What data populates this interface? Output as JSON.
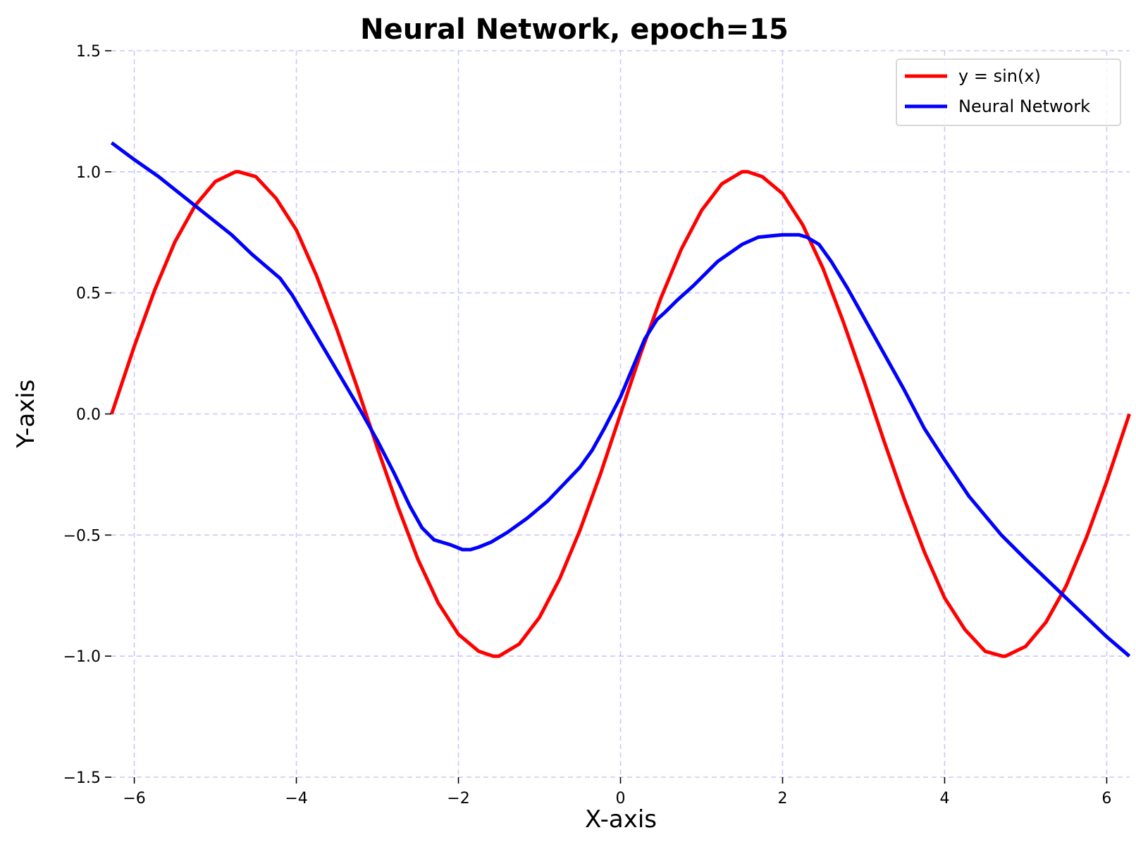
{
  "chart_data": {
    "type": "line",
    "title": "Neural Network, epoch=15",
    "xlabel": "X-axis",
    "ylabel": "Y-axis",
    "xlim": [
      -6.2832,
      6.2832
    ],
    "ylim": [
      -1.5,
      1.5
    ],
    "xticks": [
      -6,
      -4,
      -2,
      0,
      2,
      4,
      6
    ],
    "xtick_labels": [
      "−6",
      "−4",
      "−2",
      "0",
      "2",
      "4",
      "6"
    ],
    "yticks": [
      1.5,
      1.0,
      0.5,
      0.0,
      -0.5,
      -1.0,
      -1.5
    ],
    "ytick_labels": [
      "1.5",
      "1.0",
      "0.5",
      "0.0",
      "−0.5",
      "−1.0",
      "−1.5"
    ],
    "grid": true,
    "legend_position": "top-right",
    "series": [
      {
        "name": "y = sin(x)",
        "color": "#ff0000",
        "x": [
          -6.28,
          -6.0,
          -5.75,
          -5.5,
          -5.25,
          -5.0,
          -4.75,
          -4.712,
          -4.5,
          -4.25,
          -4.0,
          -3.75,
          -3.5,
          -3.25,
          -3.0,
          -2.75,
          -2.5,
          -2.25,
          -2.0,
          -1.75,
          -1.571,
          -1.5,
          -1.25,
          -1.0,
          -0.75,
          -0.5,
          -0.25,
          0.0,
          0.25,
          0.5,
          0.75,
          1.0,
          1.25,
          1.5,
          1.571,
          1.75,
          2.0,
          2.25,
          2.5,
          2.75,
          3.0,
          3.25,
          3.5,
          3.75,
          4.0,
          4.25,
          4.5,
          4.712,
          4.75,
          5.0,
          5.25,
          5.5,
          5.75,
          6.0,
          6.28
        ],
        "y": [
          0.0,
          0.28,
          0.51,
          0.71,
          0.86,
          0.96,
          1.0,
          1.0,
          0.98,
          0.89,
          0.76,
          0.57,
          0.35,
          0.11,
          -0.14,
          -0.38,
          -0.6,
          -0.78,
          -0.91,
          -0.98,
          -1.0,
          -1.0,
          -0.95,
          -0.84,
          -0.68,
          -0.48,
          -0.25,
          0.0,
          0.25,
          0.48,
          0.68,
          0.84,
          0.95,
          1.0,
          1.0,
          0.98,
          0.91,
          0.78,
          0.6,
          0.38,
          0.14,
          -0.11,
          -0.35,
          -0.57,
          -0.76,
          -0.89,
          -0.98,
          -1.0,
          -1.0,
          -0.96,
          -0.86,
          -0.71,
          -0.51,
          -0.28,
          0.0
        ]
      },
      {
        "name": "Neural Network",
        "color": "#0000ff",
        "x": [
          -6.28,
          -6.0,
          -5.7,
          -5.4,
          -5.1,
          -4.8,
          -4.55,
          -4.2,
          -4.05,
          -3.8,
          -3.5,
          -3.2,
          -3.0,
          -2.8,
          -2.6,
          -2.45,
          -2.3,
          -2.1,
          -1.95,
          -1.85,
          -1.75,
          -1.6,
          -1.4,
          -1.15,
          -0.9,
          -0.7,
          -0.5,
          -0.35,
          -0.2,
          0.0,
          0.15,
          0.3,
          0.45,
          0.55,
          0.7,
          0.9,
          1.2,
          1.5,
          1.7,
          1.85,
          2.0,
          2.2,
          2.3,
          2.45,
          2.6,
          2.8,
          3.0,
          3.3,
          3.5,
          3.75,
          4.0,
          4.3,
          4.7,
          5.0,
          5.5,
          6.0,
          6.28
        ],
        "y": [
          1.12,
          1.05,
          0.98,
          0.9,
          0.82,
          0.74,
          0.66,
          0.56,
          0.49,
          0.35,
          0.18,
          0.01,
          -0.11,
          -0.24,
          -0.38,
          -0.47,
          -0.52,
          -0.54,
          -0.56,
          -0.56,
          -0.55,
          -0.53,
          -0.49,
          -0.43,
          -0.36,
          -0.29,
          -0.22,
          -0.15,
          -0.06,
          0.07,
          0.19,
          0.31,
          0.39,
          0.42,
          0.47,
          0.53,
          0.63,
          0.7,
          0.73,
          0.735,
          0.74,
          0.74,
          0.73,
          0.7,
          0.63,
          0.52,
          0.4,
          0.22,
          0.1,
          -0.06,
          -0.19,
          -0.34,
          -0.5,
          -0.6,
          -0.76,
          -0.92,
          -1.0
        ]
      }
    ]
  }
}
